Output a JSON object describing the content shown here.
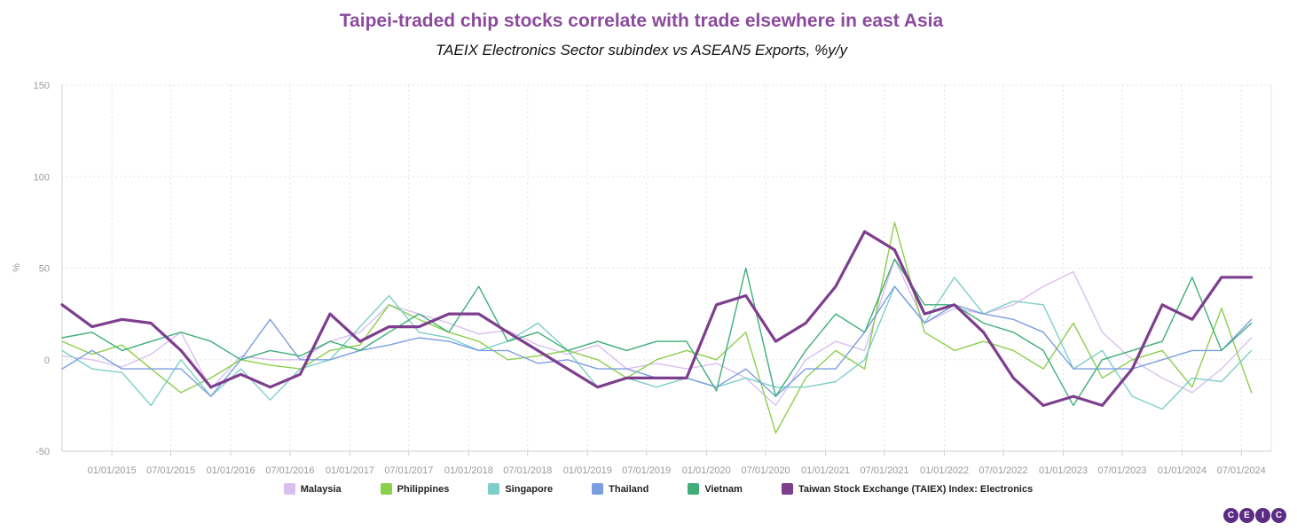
{
  "header": {
    "title": "Taipei-traded chip stocks correlate with trade elsewhere in east Asia",
    "subtitle": "TAEIX Electronics Sector subindex vs ASEAN5 Exports, %y/y"
  },
  "logo": {
    "letters": [
      "C",
      "E",
      "I",
      "C"
    ],
    "color": "#5b2c83"
  },
  "chart_data": {
    "type": "line",
    "title": "Taipei-traded chip stocks correlate with trade elsewhere in east Asia",
    "subtitle": "TAEIX Electronics Sector subindex vs ASEAN5 Exports, %y/y",
    "ylabel": "%",
    "xlabel": "",
    "ylim": [
      -50,
      150
    ],
    "yticks": [
      -50,
      0,
      50,
      100,
      150
    ],
    "xlim": [
      "2014-08-01",
      "2024-10-01"
    ],
    "xticks": [
      "01/01/2015",
      "07/01/2015",
      "01/01/2016",
      "07/01/2016",
      "01/01/2017",
      "07/01/2017",
      "01/01/2018",
      "07/01/2018",
      "01/01/2019",
      "07/01/2019",
      "01/01/2020",
      "07/01/2020",
      "01/01/2021",
      "07/01/2021",
      "01/01/2022",
      "07/01/2022",
      "01/01/2023",
      "07/01/2023",
      "01/01/2024",
      "07/01/2024"
    ],
    "grid": true,
    "legend_position": "bottom",
    "x": [
      "2014-08",
      "2014-11",
      "2015-02",
      "2015-05",
      "2015-08",
      "2015-11",
      "2016-02",
      "2016-05",
      "2016-08",
      "2016-11",
      "2017-02",
      "2017-05",
      "2017-08",
      "2017-11",
      "2018-02",
      "2018-05",
      "2018-08",
      "2018-11",
      "2019-02",
      "2019-05",
      "2019-08",
      "2019-11",
      "2020-02",
      "2020-05",
      "2020-08",
      "2020-11",
      "2021-02",
      "2021-05",
      "2021-08",
      "2021-11",
      "2022-02",
      "2022-05",
      "2022-08",
      "2022-11",
      "2023-02",
      "2023-05",
      "2023-08",
      "2023-11",
      "2024-02",
      "2024-05",
      "2024-08"
    ],
    "series": [
      {
        "name": "Malaysia",
        "color": "#d9bff0",
        "line_width": 1.4,
        "values": [
          2,
          0,
          -4,
          3,
          15,
          -16,
          2,
          0,
          0,
          10,
          15,
          30,
          25,
          20,
          14,
          16,
          8,
          3,
          8,
          -5,
          -2,
          -5,
          -2,
          -10,
          -25,
          0,
          10,
          5,
          55,
          20,
          28,
          25,
          30,
          40,
          48,
          15,
          0,
          -10,
          -18,
          -5,
          12
        ]
      },
      {
        "name": "Philippines",
        "color": "#8ccf4d",
        "line_width": 1.4,
        "values": [
          10,
          3,
          8,
          -5,
          -18,
          -10,
          0,
          -3,
          -5,
          5,
          8,
          30,
          22,
          15,
          10,
          0,
          2,
          5,
          0,
          -10,
          0,
          5,
          0,
          15,
          -40,
          -10,
          5,
          -5,
          75,
          15,
          5,
          10,
          5,
          -5,
          20,
          -10,
          0,
          5,
          -15,
          28,
          -18
        ]
      },
      {
        "name": "Singapore",
        "color": "#7ecfc8",
        "line_width": 1.4,
        "values": [
          5,
          -5,
          -7,
          -25,
          0,
          -20,
          -5,
          -22,
          -5,
          0,
          18,
          35,
          15,
          12,
          5,
          10,
          20,
          5,
          -15,
          -10,
          -15,
          -10,
          -15,
          -10,
          -15,
          -15,
          -12,
          0,
          40,
          20,
          45,
          25,
          32,
          30,
          -5,
          5,
          -20,
          -27,
          -10,
          -12,
          5
        ]
      },
      {
        "name": "Thailand",
        "color": "#7b9ee0",
        "line_width": 1.4,
        "values": [
          -5,
          5,
          -5,
          -5,
          -5,
          -20,
          0,
          22,
          0,
          0,
          5,
          8,
          12,
          10,
          5,
          5,
          -2,
          0,
          -5,
          -5,
          -10,
          -10,
          -15,
          -5,
          -20,
          -5,
          -5,
          15,
          40,
          20,
          30,
          25,
          22,
          15,
          -5,
          -5,
          -5,
          0,
          5,
          5,
          22
        ]
      },
      {
        "name": "Vietnam",
        "color": "#3fae78",
        "line_width": 1.4,
        "values": [
          12,
          15,
          5,
          10,
          15,
          10,
          0,
          5,
          2,
          10,
          5,
          15,
          25,
          15,
          40,
          10,
          15,
          5,
          10,
          5,
          10,
          10,
          -17,
          50,
          -20,
          5,
          25,
          15,
          55,
          30,
          30,
          20,
          15,
          5,
          -25,
          0,
          5,
          10,
          45,
          5,
          20
        ]
      },
      {
        "name": "Taiwan Stock Exchange (TAIEX) Index: Electronics",
        "color": "#7d3e8e",
        "line_width": 3.2,
        "values": [
          30,
          18,
          22,
          20,
          5,
          -15,
          -8,
          -15,
          -8,
          25,
          10,
          18,
          18,
          25,
          25,
          15,
          5,
          -5,
          -15,
          -10,
          -10,
          -10,
          30,
          35,
          10,
          20,
          40,
          70,
          60,
          25,
          30,
          15,
          -10,
          -25,
          -20,
          -25,
          -5,
          30,
          22,
          45,
          45
        ]
      }
    ]
  }
}
